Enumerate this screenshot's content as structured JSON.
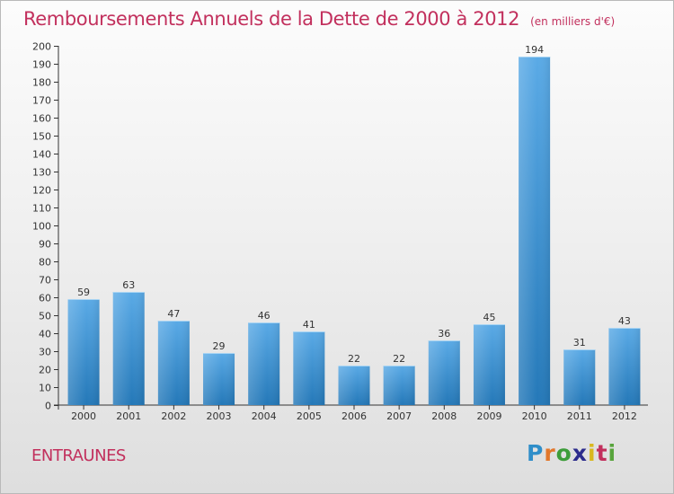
{
  "title": "Remboursements Annuels de la Dette de 2000 à 2012",
  "unit": "(en milliers d'€)",
  "commune": "ENTRAUNES",
  "logo": [
    "P",
    "r",
    "o",
    "x",
    "i",
    "t",
    "i"
  ],
  "colors": {
    "title": "#c2305d",
    "bar_light": "#5aaae6",
    "bar_dark": "#2478b8"
  },
  "chart_data": {
    "type": "bar",
    "title": "Remboursements Annuels de la Dette de 2000 à 2012",
    "unit": "(en milliers d'€)",
    "categories": [
      "2000",
      "2001",
      "2002",
      "2003",
      "2004",
      "2005",
      "2006",
      "2007",
      "2008",
      "2009",
      "2010",
      "2011",
      "2012"
    ],
    "values": [
      59,
      63,
      47,
      29,
      46,
      41,
      22,
      22,
      36,
      45,
      194,
      31,
      43
    ],
    "ylim": [
      0,
      200
    ],
    "yticks": [
      0,
      10,
      20,
      30,
      40,
      50,
      60,
      70,
      80,
      90,
      100,
      110,
      120,
      130,
      140,
      150,
      160,
      170,
      180,
      190,
      200
    ],
    "grid": false,
    "legend": "none"
  }
}
